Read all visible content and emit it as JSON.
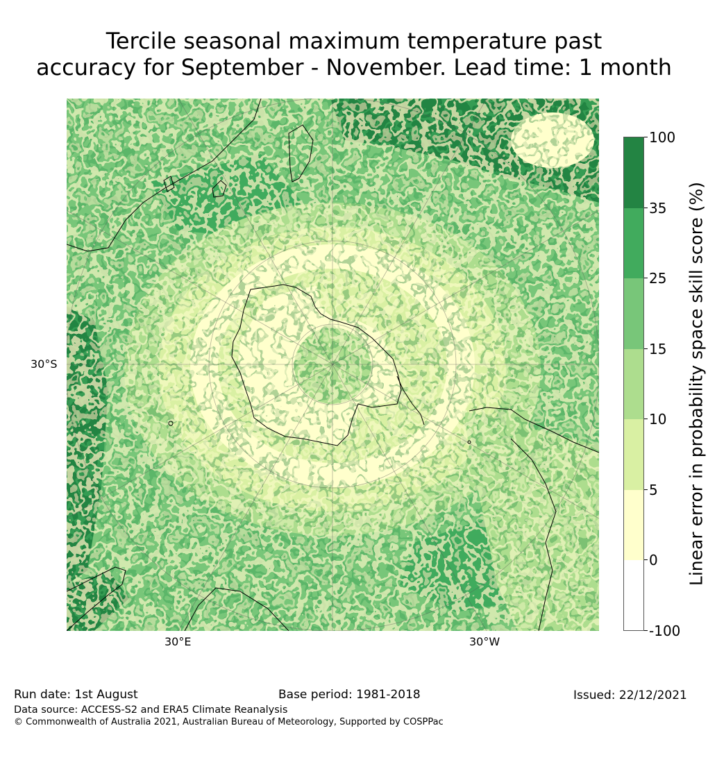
{
  "title_line1": "Tercile seasonal maximum temperature past",
  "title_line2": "accuracy for September - November. Lead time: 1 month",
  "map": {
    "projection": "south-polar-stereographic",
    "lat_label": "30°S",
    "lon_labels": [
      "30°E",
      "30°W"
    ]
  },
  "colorbar": {
    "label": "Linear error in probability space skill score (%)",
    "ticks": [
      "100",
      "35",
      "25",
      "15",
      "10",
      "5",
      "0",
      "-100"
    ],
    "colors": [
      "#238443",
      "#41ab5d",
      "#78c679",
      "#addd8e",
      "#d9f0a3",
      "#ffffcc",
      "#ffffff"
    ]
  },
  "footer": {
    "run_date": "Run date: 1st August",
    "base_period": "Base period: 1981-2018",
    "issued": "Issued: 22/12/2021",
    "data_source": "Data source: ACCESS-S2 and ERA5 Climate Reanalysis",
    "copyright": "© Commonwealth of Australia 2021, Australian Bureau of Meteorology, Supported by COSPPac"
  }
}
